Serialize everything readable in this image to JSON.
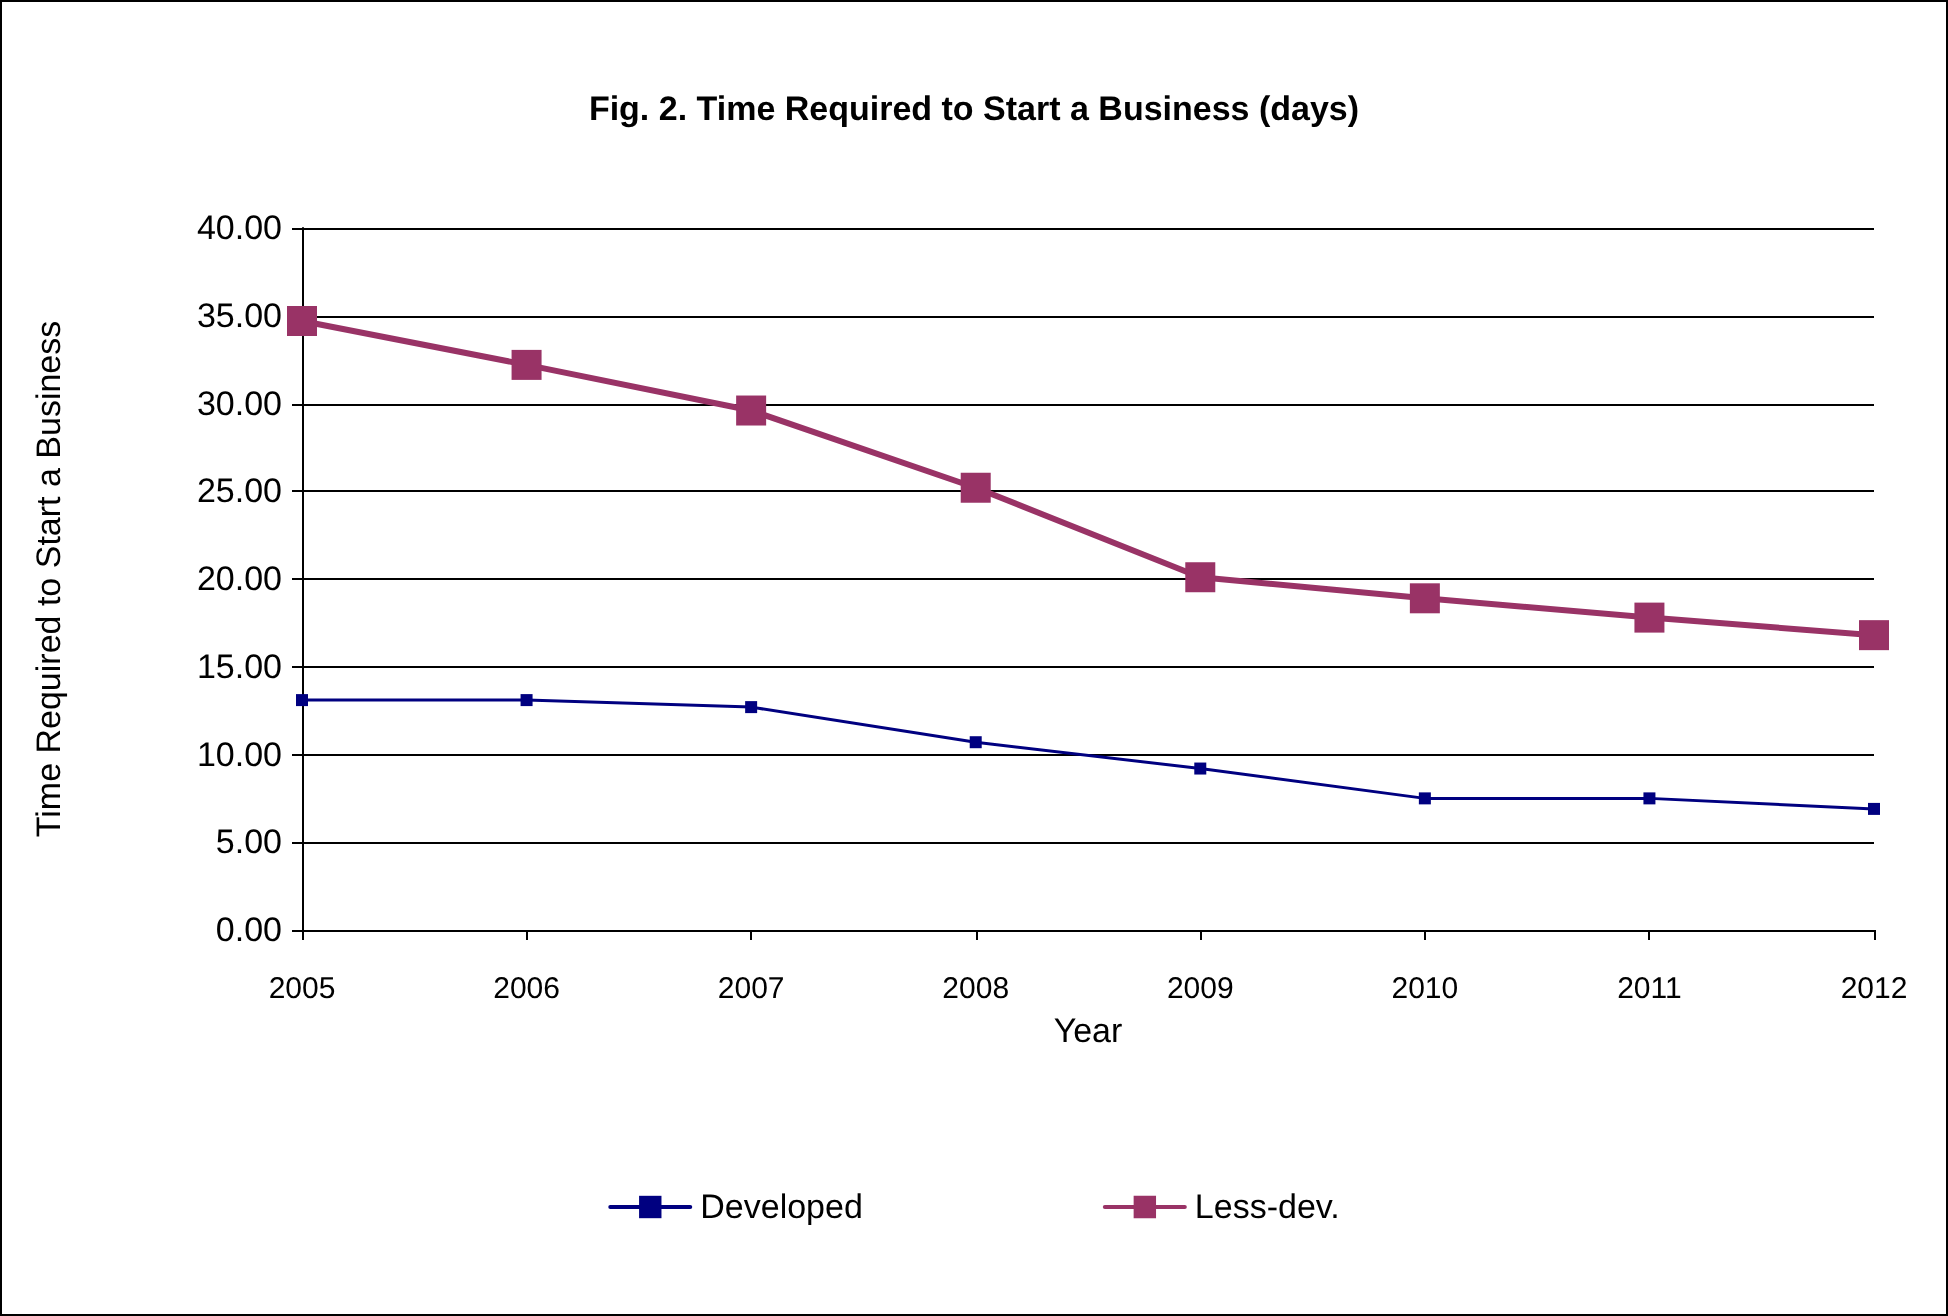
{
  "chart_data": {
    "type": "line",
    "title": "Fig. 2. Time Required to Start a Business (days)",
    "xlabel": "Year",
    "ylabel": "Time Required to Start a Business",
    "categories": [
      "2005",
      "2006",
      "2007",
      "2008",
      "2009",
      "2010",
      "2011",
      "2012"
    ],
    "series": [
      {
        "name": "Developed",
        "color": "#000080",
        "values": [
          13.1,
          13.1,
          12.7,
          10.7,
          9.2,
          7.5,
          7.5,
          6.9
        ]
      },
      {
        "name": "Less-dev.",
        "color": "#993366",
        "values": [
          34.7,
          32.2,
          29.6,
          25.2,
          20.1,
          18.9,
          17.8,
          16.8
        ]
      }
    ],
    "ylim": [
      0,
      40
    ],
    "yticks": [
      {
        "value": 0,
        "label": "0.00"
      },
      {
        "value": 5,
        "label": "5.00"
      },
      {
        "value": 10,
        "label": "10.00"
      },
      {
        "value": 15,
        "label": "15.00"
      },
      {
        "value": 20,
        "label": "20.00"
      },
      {
        "value": 25,
        "label": "25.00"
      },
      {
        "value": 30,
        "label": "30.00"
      },
      {
        "value": 35,
        "label": "35.00"
      },
      {
        "value": 40,
        "label": "40.00"
      }
    ],
    "grid": "y",
    "legend": "bottom",
    "marker": "square",
    "line_style": "solid"
  }
}
